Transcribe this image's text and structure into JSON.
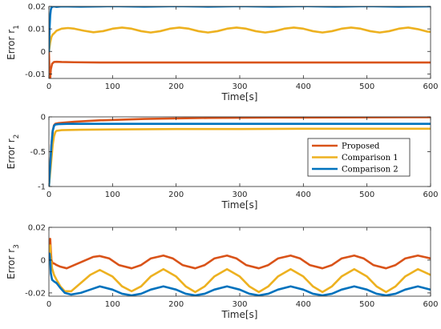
{
  "chart_data": [
    {
      "type": "line",
      "ylabel_main": "Error r",
      "ylabel_sub": "1",
      "xlabel": "Time[s]",
      "xlim": [
        0,
        600
      ],
      "ylim": [
        -0.012,
        0.02
      ],
      "xticks": [
        0,
        100,
        200,
        300,
        400,
        500,
        600
      ],
      "xtick_labels": [
        "0",
        "100",
        "200",
        "300",
        "400",
        "500",
        "600"
      ],
      "yticks": [
        -0.01,
        0,
        0.01,
        0.02
      ],
      "ytick_labels": [
        "-0.01",
        "0",
        "0.01",
        "0.02"
      ],
      "grid": false,
      "series": [
        {
          "name": "Proposed",
          "color": "#D95319",
          "x": [
            0,
            1,
            2,
            3,
            5,
            8,
            12,
            20,
            40,
            80,
            150,
            300,
            450,
            600
          ],
          "y": [
            0.0,
            -0.01,
            -0.012,
            -0.008,
            -0.0055,
            -0.0047,
            -0.0046,
            -0.0047,
            -0.0048,
            -0.0049,
            -0.0049,
            -0.0049,
            -0.0049,
            -0.0049
          ]
        },
        {
          "name": "Comparison 1",
          "color": "#EDB120",
          "x": [
            0,
            2,
            4,
            6,
            8,
            12,
            20,
            30,
            40,
            55,
            70,
            85,
            100,
            115,
            130,
            145,
            160,
            175,
            190,
            205,
            220,
            235,
            250,
            265,
            280,
            295,
            310,
            325,
            340,
            355,
            370,
            385,
            400,
            415,
            430,
            445,
            460,
            475,
            490,
            505,
            520,
            535,
            550,
            565,
            580,
            595,
            600
          ],
          "y": [
            0.0,
            0.004,
            0.0065,
            0.0075,
            0.008,
            0.0092,
            0.0101,
            0.0104,
            0.0101,
            0.0092,
            0.0085,
            0.009,
            0.0101,
            0.0106,
            0.0101,
            0.009,
            0.0084,
            0.009,
            0.0101,
            0.0106,
            0.0101,
            0.009,
            0.0084,
            0.009,
            0.0101,
            0.0106,
            0.0101,
            0.009,
            0.0084,
            0.009,
            0.0101,
            0.0106,
            0.0101,
            0.009,
            0.0084,
            0.009,
            0.0101,
            0.0106,
            0.0101,
            0.009,
            0.0084,
            0.009,
            0.0101,
            0.0106,
            0.0099,
            0.0088,
            0.0087
          ]
        },
        {
          "name": "Comparison 2",
          "color": "#0072BD",
          "x": [
            0,
            1,
            2,
            3,
            4,
            6,
            8,
            12,
            20,
            50,
            100,
            150,
            200,
            250,
            300,
            350,
            400,
            450,
            500,
            550,
            600
          ],
          "y": [
            0.0,
            0.01,
            0.016,
            0.0185,
            0.0195,
            0.0199,
            0.02,
            0.0198,
            0.02,
            0.0199,
            0.0201,
            0.0199,
            0.0201,
            0.0199,
            0.0201,
            0.0199,
            0.0201,
            0.0199,
            0.0201,
            0.0199,
            0.02
          ]
        }
      ]
    },
    {
      "type": "line",
      "ylabel_main": "Error r",
      "ylabel_sub": "2",
      "xlabel": "Time[s]",
      "xlim": [
        0,
        600
      ],
      "ylim": [
        -1,
        0
      ],
      "xticks": [
        0,
        100,
        200,
        300,
        400,
        500,
        600
      ],
      "xtick_labels": [
        "0",
        "100",
        "200",
        "300",
        "400",
        "500",
        "600"
      ],
      "yticks": [
        -1,
        -0.5,
        0
      ],
      "ytick_labels": [
        "-1",
        "-0.5",
        "0"
      ],
      "grid": false,
      "legend": {
        "position": "right",
        "entries": [
          "Proposed",
          "Comparison 1",
          "Comparison 2"
        ]
      },
      "series": [
        {
          "name": "Proposed",
          "color": "#D95319",
          "x": [
            0,
            2,
            4,
            6,
            8,
            10,
            15,
            20,
            40,
            80,
            150,
            250,
            350,
            450,
            600
          ],
          "y": [
            -1.0,
            -0.7,
            -0.4,
            -0.2,
            -0.12,
            -0.1,
            -0.09,
            -0.085,
            -0.07,
            -0.05,
            -0.03,
            -0.015,
            -0.01,
            -0.008,
            -0.005
          ]
        },
        {
          "name": "Comparison 1",
          "color": "#EDB120",
          "x": [
            0,
            2,
            4,
            6,
            8,
            10,
            12,
            20,
            50,
            100,
            200,
            300,
            400,
            500,
            600
          ],
          "y": [
            -1.0,
            -0.8,
            -0.6,
            -0.4,
            -0.28,
            -0.22,
            -0.2,
            -0.19,
            -0.185,
            -0.18,
            -0.175,
            -0.175,
            -0.17,
            -0.17,
            -0.17
          ]
        },
        {
          "name": "Comparison 2",
          "color": "#0072BD",
          "x": [
            0,
            2,
            4,
            6,
            8,
            10,
            15,
            30,
            100,
            200,
            300,
            400,
            500,
            600
          ],
          "y": [
            -1.0,
            -0.7,
            -0.4,
            -0.2,
            -0.13,
            -0.11,
            -0.105,
            -0.1,
            -0.1,
            -0.1,
            -0.1,
            -0.1,
            -0.1,
            -0.1
          ]
        }
      ]
    },
    {
      "type": "line",
      "ylabel_main": "Error r",
      "ylabel_sub": "3",
      "xlabel": "Time[s]",
      "xlim": [
        0,
        600
      ],
      "ylim": [
        -0.022,
        0.02
      ],
      "xticks": [
        0,
        100,
        200,
        300,
        400,
        500,
        600
      ],
      "xtick_labels": [
        "0",
        "100",
        "200",
        "300",
        "400",
        "500",
        "600"
      ],
      "yticks": [
        -0.02,
        0,
        0.02
      ],
      "ytick_labels": [
        "-0.02",
        "0",
        "0.02"
      ],
      "grid": false,
      "series": [
        {
          "name": "Proposed",
          "color": "#D95319",
          "x": [
            0,
            1,
            2,
            3,
            4,
            6,
            8,
            12,
            18,
            28,
            40,
            55,
            70,
            80,
            95,
            110,
            130,
            145,
            160,
            180,
            195,
            210,
            230,
            245,
            260,
            280,
            295,
            310,
            330,
            345,
            360,
            380,
            395,
            410,
            430,
            445,
            460,
            480,
            495,
            510,
            530,
            545,
            560,
            580,
            595,
            600
          ],
          "y": [
            0.0,
            0.012,
            0.013,
            0.006,
            0.0,
            -0.002,
            -0.002,
            -0.003,
            -0.004,
            -0.005,
            -0.003,
            -0.0005,
            0.002,
            0.0025,
            0.001,
            -0.003,
            -0.005,
            -0.003,
            0.001,
            0.0028,
            0.001,
            -0.003,
            -0.005,
            -0.003,
            0.001,
            0.0028,
            0.001,
            -0.003,
            -0.005,
            -0.003,
            0.001,
            0.0028,
            0.001,
            -0.003,
            -0.005,
            -0.003,
            0.001,
            0.0028,
            0.001,
            -0.003,
            -0.005,
            -0.003,
            0.001,
            0.0028,
            0.0015,
            0.001
          ]
        },
        {
          "name": "Comparison 1",
          "color": "#EDB120",
          "x": [
            0,
            1,
            2,
            3,
            5,
            8,
            12,
            18,
            25,
            35,
            50,
            65,
            80,
            100,
            115,
            130,
            145,
            160,
            180,
            200,
            215,
            230,
            245,
            260,
            280,
            300,
            315,
            330,
            345,
            360,
            380,
            400,
            415,
            430,
            445,
            460,
            480,
            500,
            515,
            530,
            545,
            560,
            580,
            600
          ],
          "y": [
            0.0,
            0.008,
            0.009,
            0.002,
            -0.005,
            -0.009,
            -0.012,
            -0.016,
            -0.019,
            -0.019,
            -0.014,
            -0.009,
            -0.006,
            -0.01,
            -0.016,
            -0.019,
            -0.016,
            -0.01,
            -0.0055,
            -0.01,
            -0.016,
            -0.0195,
            -0.016,
            -0.01,
            -0.0055,
            -0.01,
            -0.016,
            -0.0195,
            -0.016,
            -0.01,
            -0.0055,
            -0.01,
            -0.016,
            -0.0195,
            -0.016,
            -0.01,
            -0.0055,
            -0.01,
            -0.016,
            -0.0195,
            -0.016,
            -0.01,
            -0.0055,
            -0.009
          ]
        },
        {
          "name": "Comparison 2",
          "color": "#0072BD",
          "x": [
            0,
            1,
            2,
            3,
            5,
            8,
            12,
            18,
            25,
            35,
            50,
            65,
            80,
            100,
            115,
            130,
            145,
            160,
            180,
            200,
            215,
            230,
            245,
            260,
            280,
            300,
            315,
            330,
            345,
            360,
            380,
            400,
            415,
            430,
            445,
            460,
            480,
            500,
            515,
            530,
            545,
            560,
            580,
            600
          ],
          "y": [
            0.0,
            0.004,
            0.0,
            -0.008,
            -0.012,
            -0.013,
            -0.014,
            -0.017,
            -0.02,
            -0.021,
            -0.02,
            -0.018,
            -0.016,
            -0.018,
            -0.0205,
            -0.0215,
            -0.0205,
            -0.018,
            -0.016,
            -0.018,
            -0.0205,
            -0.0215,
            -0.0205,
            -0.018,
            -0.016,
            -0.018,
            -0.0205,
            -0.0215,
            -0.0205,
            -0.018,
            -0.016,
            -0.018,
            -0.0205,
            -0.0215,
            -0.0205,
            -0.018,
            -0.016,
            -0.018,
            -0.0205,
            -0.0215,
            -0.0205,
            -0.018,
            -0.016,
            -0.018
          ]
        }
      ]
    }
  ]
}
